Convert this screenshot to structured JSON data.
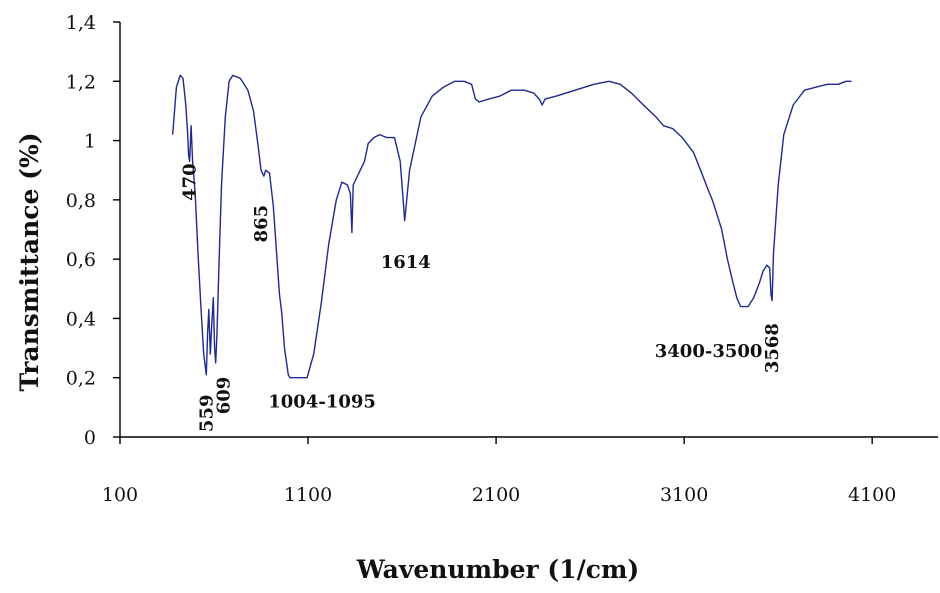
{
  "chart_data": {
    "type": "line",
    "title": "",
    "xlabel": "Wavenumber (1/cm)",
    "ylabel": "Transmittance (%)",
    "xlim": [
      100,
      4450
    ],
    "ylim": [
      0,
      1.4
    ],
    "xticks": [
      100,
      1100,
      2100,
      3100,
      4100
    ],
    "xtick_labels": [
      "100",
      "1100",
      "2100",
      "3100",
      "4100"
    ],
    "yticks": [
      0,
      0.2,
      0.4,
      0.6,
      0.8,
      1,
      1.2,
      1.4
    ],
    "ytick_labels": [
      "0",
      "0,2",
      "0,4",
      "0,6",
      "0,8",
      "1",
      "1,2",
      "1,4"
    ],
    "grid": false,
    "legend": "none",
    "series": [
      {
        "color": "#1f2a8c",
        "points": [
          [
            380,
            1.02
          ],
          [
            400,
            1.18
          ],
          [
            420,
            1.22
          ],
          [
            435,
            1.21
          ],
          [
            450,
            1.12
          ],
          [
            460,
            1.02
          ],
          [
            465,
            0.95
          ],
          [
            470,
            0.93
          ],
          [
            478,
            1.05
          ],
          [
            486,
            0.93
          ],
          [
            500,
            0.82
          ],
          [
            515,
            0.62
          ],
          [
            530,
            0.44
          ],
          [
            545,
            0.28
          ],
          [
            559,
            0.21
          ],
          [
            566,
            0.35
          ],
          [
            572,
            0.43
          ],
          [
            580,
            0.28
          ],
          [
            588,
            0.38
          ],
          [
            596,
            0.47
          ],
          [
            603,
            0.3
          ],
          [
            609,
            0.25
          ],
          [
            616,
            0.35
          ],
          [
            625,
            0.55
          ],
          [
            640,
            0.85
          ],
          [
            660,
            1.08
          ],
          [
            680,
            1.2
          ],
          [
            700,
            1.22
          ],
          [
            740,
            1.21
          ],
          [
            780,
            1.17
          ],
          [
            810,
            1.1
          ],
          [
            835,
            0.98
          ],
          [
            850,
            0.9
          ],
          [
            865,
            0.88
          ],
          [
            875,
            0.9
          ],
          [
            895,
            0.89
          ],
          [
            915,
            0.78
          ],
          [
            935,
            0.6
          ],
          [
            948,
            0.48
          ],
          [
            960,
            0.42
          ],
          [
            975,
            0.3
          ],
          [
            995,
            0.21
          ],
          [
            1004,
            0.2
          ],
          [
            1050,
            0.2
          ],
          [
            1095,
            0.2
          ],
          [
            1130,
            0.28
          ],
          [
            1170,
            0.45
          ],
          [
            1210,
            0.65
          ],
          [
            1250,
            0.8
          ],
          [
            1280,
            0.86
          ],
          [
            1310,
            0.85
          ],
          [
            1325,
            0.82
          ],
          [
            1333,
            0.69
          ],
          [
            1340,
            0.85
          ],
          [
            1370,
            0.89
          ],
          [
            1400,
            0.93
          ],
          [
            1420,
            0.99
          ],
          [
            1450,
            1.01
          ],
          [
            1480,
            1.02
          ],
          [
            1520,
            1.01
          ],
          [
            1560,
            1.01
          ],
          [
            1590,
            0.93
          ],
          [
            1614,
            0.73
          ],
          [
            1640,
            0.9
          ],
          [
            1700,
            1.08
          ],
          [
            1760,
            1.15
          ],
          [
            1820,
            1.18
          ],
          [
            1880,
            1.2
          ],
          [
            1930,
            1.2
          ],
          [
            1970,
            1.19
          ],
          [
            1990,
            1.14
          ],
          [
            2010,
            1.13
          ],
          [
            2060,
            1.14
          ],
          [
            2120,
            1.15
          ],
          [
            2180,
            1.17
          ],
          [
            2250,
            1.17
          ],
          [
            2300,
            1.16
          ],
          [
            2330,
            1.14
          ],
          [
            2345,
            1.12
          ],
          [
            2360,
            1.14
          ],
          [
            2420,
            1.15
          ],
          [
            2520,
            1.17
          ],
          [
            2620,
            1.19
          ],
          [
            2700,
            1.2
          ],
          [
            2760,
            1.19
          ],
          [
            2820,
            1.16
          ],
          [
            2900,
            1.11
          ],
          [
            2950,
            1.08
          ],
          [
            2990,
            1.05
          ],
          [
            3040,
            1.04
          ],
          [
            3090,
            1.01
          ],
          [
            3150,
            0.96
          ],
          [
            3200,
            0.88
          ],
          [
            3230,
            0.83
          ],
          [
            3250,
            0.8
          ],
          [
            3270,
            0.76
          ],
          [
            3300,
            0.7
          ],
          [
            3330,
            0.6
          ],
          [
            3360,
            0.52
          ],
          [
            3380,
            0.47
          ],
          [
            3400,
            0.44
          ],
          [
            3440,
            0.44
          ],
          [
            3470,
            0.47
          ],
          [
            3500,
            0.52
          ],
          [
            3520,
            0.56
          ],
          [
            3540,
            0.58
          ],
          [
            3555,
            0.57
          ],
          [
            3562,
            0.48
          ],
          [
            3568,
            0.46
          ],
          [
            3575,
            0.62
          ],
          [
            3600,
            0.85
          ],
          [
            3630,
            1.02
          ],
          [
            3680,
            1.12
          ],
          [
            3740,
            1.17
          ],
          [
            3800,
            1.18
          ],
          [
            3860,
            1.19
          ],
          [
            3920,
            1.19
          ],
          [
            3960,
            1.2
          ],
          [
            3990,
            1.2
          ]
        ]
      }
    ],
    "annotations": [
      {
        "text": "470",
        "x": 470,
        "y": 0.86,
        "rotate": -90
      },
      {
        "text": "559",
        "x": 559,
        "y": 0.08,
        "rotate": -90
      },
      {
        "text": "609",
        "x": 650,
        "y": 0.14,
        "rotate": -90
      },
      {
        "text": "865",
        "x": 850,
        "y": 0.72,
        "rotate": -90
      },
      {
        "text": "1004-1095",
        "x": 1175,
        "y": 0.1,
        "rotate": 0
      },
      {
        "text": "1614",
        "x": 1620,
        "y": 0.57,
        "rotate": 0
      },
      {
        "text": "3400-3500",
        "x": 3230,
        "y": 0.27,
        "rotate": 0
      },
      {
        "text": "3568",
        "x": 3568,
        "y": 0.3,
        "rotate": -90
      }
    ]
  }
}
